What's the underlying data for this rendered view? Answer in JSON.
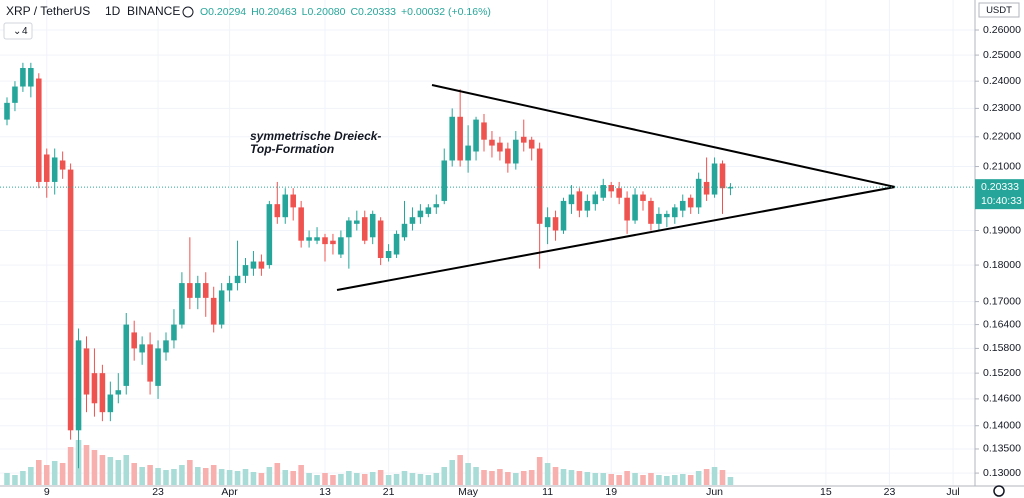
{
  "chart_data": {
    "type": "candlestick",
    "header": {
      "symbol": "XRP / TetherUS",
      "interval": "1D",
      "exchange": "BINANCE",
      "legend": [
        "O0.20294",
        "H0.20463",
        "L0.20080",
        "C0.20333",
        "+0.00032 (+0.16%)"
      ],
      "indicator_badge": "4"
    },
    "annotation": "symmetrische Dreieck-\nTop-Formation",
    "currency": "USDT",
    "last_price_label": "0.20333",
    "countdown": "10:40:33",
    "colors": {
      "up": "#26a69a",
      "down": "#ef5350",
      "up_volume": "#a9dcd7",
      "down_volume": "#f7b0ae"
    },
    "log_scale": true,
    "ylim": [
      0.1276,
      0.2725
    ],
    "yticks": [
      {
        "value": 0.13,
        "label": "0.13000"
      },
      {
        "value": 0.135,
        "label": "0.13500"
      },
      {
        "value": 0.14,
        "label": "0.14000"
      },
      {
        "value": 0.146,
        "label": "0.14600"
      },
      {
        "value": 0.152,
        "label": "0.15200"
      },
      {
        "value": 0.158,
        "label": "0.15800"
      },
      {
        "value": 0.164,
        "label": "0.16400"
      },
      {
        "value": 0.17,
        "label": "0.17000"
      },
      {
        "value": 0.18,
        "label": "0.18000"
      },
      {
        "value": 0.19,
        "label": "0.19000"
      },
      {
        "value": 0.21,
        "label": "0.21000"
      },
      {
        "value": 0.22,
        "label": "0.22000"
      },
      {
        "value": 0.23,
        "label": "0.23000"
      },
      {
        "value": 0.24,
        "label": "0.24000"
      },
      {
        "value": 0.25,
        "label": "0.25000"
      },
      {
        "value": 0.26,
        "label": "0.26000"
      }
    ],
    "xlim": [
      -0.88,
      121.76
    ],
    "xticks": [
      {
        "value": 5,
        "label": "9"
      },
      {
        "value": 19,
        "label": "23"
      },
      {
        "value": 28,
        "label": "Apr"
      },
      {
        "value": 40,
        "label": "13"
      },
      {
        "value": 48,
        "label": "21"
      },
      {
        "value": 58,
        "label": "May"
      },
      {
        "value": 68,
        "label": "11"
      },
      {
        "value": 76,
        "label": "19"
      },
      {
        "value": 89,
        "label": "Jun"
      },
      {
        "value": 103,
        "label": "15"
      },
      {
        "value": 111,
        "label": "23"
      },
      {
        "value": 119,
        "label": "Jul"
      }
    ],
    "ohlc": [
      [
        0.226,
        0.234,
        0.224,
        0.232
      ],
      [
        0.232,
        0.24,
        0.229,
        0.238
      ],
      [
        0.238,
        0.247,
        0.236,
        0.245
      ],
      [
        0.238,
        0.247,
        0.234,
        0.245
      ],
      [
        0.241,
        0.243,
        0.203,
        0.205
      ],
      [
        0.214,
        0.216,
        0.2,
        0.205
      ],
      [
        0.205,
        0.216,
        0.201,
        0.213
      ],
      [
        0.212,
        0.215,
        0.206,
        0.209
      ],
      [
        0.209,
        0.211,
        0.137,
        0.139
      ],
      [
        0.139,
        0.163,
        0.131,
        0.16
      ],
      [
        0.158,
        0.161,
        0.143,
        0.147
      ],
      [
        0.152,
        0.158,
        0.142,
        0.145
      ],
      [
        0.152,
        0.154,
        0.141,
        0.143
      ],
      [
        0.143,
        0.15,
        0.141,
        0.147
      ],
      [
        0.147,
        0.152,
        0.145,
        0.148
      ],
      [
        0.149,
        0.167,
        0.147,
        0.164
      ],
      [
        0.162,
        0.165,
        0.155,
        0.158
      ],
      [
        0.157,
        0.161,
        0.154,
        0.159
      ],
      [
        0.159,
        0.162,
        0.147,
        0.15
      ],
      [
        0.149,
        0.16,
        0.146,
        0.158
      ],
      [
        0.157,
        0.162,
        0.155,
        0.16
      ],
      [
        0.16,
        0.168,
        0.158,
        0.164
      ],
      [
        0.164,
        0.178,
        0.163,
        0.175
      ],
      [
        0.175,
        0.188,
        0.168,
        0.171
      ],
      [
        0.171,
        0.177,
        0.168,
        0.175
      ],
      [
        0.175,
        0.178,
        0.166,
        0.171
      ],
      [
        0.171,
        0.174,
        0.162,
        0.164
      ],
      [
        0.164,
        0.175,
        0.163,
        0.173
      ],
      [
        0.173,
        0.177,
        0.17,
        0.175
      ],
      [
        0.175,
        0.187,
        0.173,
        0.177
      ],
      [
        0.177,
        0.182,
        0.175,
        0.18
      ],
      [
        0.179,
        0.184,
        0.177,
        0.181
      ],
      [
        0.181,
        0.183,
        0.177,
        0.179
      ],
      [
        0.18,
        0.199,
        0.179,
        0.198
      ],
      [
        0.198,
        0.205,
        0.192,
        0.194
      ],
      [
        0.194,
        0.203,
        0.192,
        0.201
      ],
      [
        0.201,
        0.203,
        0.193,
        0.197
      ],
      [
        0.197,
        0.199,
        0.185,
        0.187
      ],
      [
        0.187,
        0.19,
        0.185,
        0.188
      ],
      [
        0.187,
        0.191,
        0.186,
        0.188
      ],
      [
        0.188,
        0.189,
        0.181,
        0.186
      ],
      [
        0.187,
        0.189,
        0.183,
        0.186
      ],
      [
        0.183,
        0.19,
        0.182,
        0.188
      ],
      [
        0.188,
        0.194,
        0.179,
        0.193
      ],
      [
        0.192,
        0.196,
        0.19,
        0.193
      ],
      [
        0.194,
        0.196,
        0.186,
        0.187
      ],
      [
        0.188,
        0.196,
        0.186,
        0.195
      ],
      [
        0.193,
        0.194,
        0.18,
        0.182
      ],
      [
        0.182,
        0.186,
        0.181,
        0.184
      ],
      [
        0.183,
        0.19,
        0.182,
        0.189
      ],
      [
        0.188,
        0.199,
        0.187,
        0.192
      ],
      [
        0.192,
        0.197,
        0.19,
        0.194
      ],
      [
        0.194,
        0.198,
        0.192,
        0.196
      ],
      [
        0.195,
        0.198,
        0.194,
        0.197
      ],
      [
        0.197,
        0.201,
        0.195,
        0.198
      ],
      [
        0.199,
        0.216,
        0.198,
        0.212
      ],
      [
        0.212,
        0.23,
        0.21,
        0.227
      ],
      [
        0.227,
        0.237,
        0.21,
        0.212
      ],
      [
        0.212,
        0.224,
        0.208,
        0.217
      ],
      [
        0.215,
        0.227,
        0.212,
        0.226
      ],
      [
        0.225,
        0.228,
        0.215,
        0.219
      ],
      [
        0.219,
        0.222,
        0.213,
        0.217
      ],
      [
        0.218,
        0.22,
        0.212,
        0.215
      ],
      [
        0.216,
        0.218,
        0.208,
        0.211
      ],
      [
        0.211,
        0.222,
        0.209,
        0.219
      ],
      [
        0.22,
        0.226,
        0.215,
        0.218
      ],
      [
        0.219,
        0.22,
        0.212,
        0.216
      ],
      [
        0.216,
        0.218,
        0.179,
        0.192
      ],
      [
        0.191,
        0.197,
        0.186,
        0.194
      ],
      [
        0.194,
        0.196,
        0.187,
        0.19
      ],
      [
        0.19,
        0.2,
        0.189,
        0.199
      ],
      [
        0.198,
        0.204,
        0.195,
        0.201
      ],
      [
        0.202,
        0.203,
        0.194,
        0.196
      ],
      [
        0.196,
        0.201,
        0.194,
        0.199
      ],
      [
        0.198,
        0.202,
        0.196,
        0.201
      ],
      [
        0.2,
        0.206,
        0.199,
        0.204
      ],
      [
        0.204,
        0.205,
        0.2,
        0.202
      ],
      [
        0.203,
        0.205,
        0.198,
        0.2
      ],
      [
        0.2,
        0.202,
        0.189,
        0.193
      ],
      [
        0.193,
        0.203,
        0.192,
        0.201
      ],
      [
        0.201,
        0.202,
        0.196,
        0.199
      ],
      [
        0.199,
        0.2,
        0.19,
        0.192
      ],
      [
        0.192,
        0.197,
        0.19,
        0.195
      ],
      [
        0.194,
        0.196,
        0.191,
        0.195
      ],
      [
        0.194,
        0.198,
        0.192,
        0.197
      ],
      [
        0.196,
        0.201,
        0.194,
        0.199
      ],
      [
        0.2,
        0.201,
        0.195,
        0.197
      ],
      [
        0.197,
        0.208,
        0.195,
        0.206
      ],
      [
        0.205,
        0.213,
        0.199,
        0.201
      ],
      [
        0.201,
        0.213,
        0.2,
        0.211
      ],
      [
        0.211,
        0.212,
        0.195,
        0.203
      ],
      [
        0.20294,
        0.20463,
        0.2008,
        0.20333
      ]
    ],
    "volume": [
      12,
      10,
      14,
      18,
      25,
      20,
      24,
      22,
      38,
      45,
      40,
      35,
      30,
      28,
      25,
      30,
      22,
      18,
      20,
      17,
      15,
      16,
      20,
      25,
      18,
      17,
      20,
      16,
      15,
      14,
      16,
      13,
      12,
      18,
      22,
      15,
      14,
      20,
      12,
      10,
      12,
      10,
      11,
      14,
      12,
      11,
      13,
      15,
      10,
      11,
      14,
      12,
      11,
      10,
      12,
      18,
      25,
      30,
      22,
      18,
      15,
      14,
      16,
      13,
      12,
      14,
      15,
      28,
      22,
      18,
      16,
      15,
      14,
      13,
      12,
      12,
      11,
      10,
      14,
      12,
      10,
      12,
      10,
      9,
      10,
      11,
      10,
      14,
      16,
      18,
      15,
      8
    ]
  }
}
